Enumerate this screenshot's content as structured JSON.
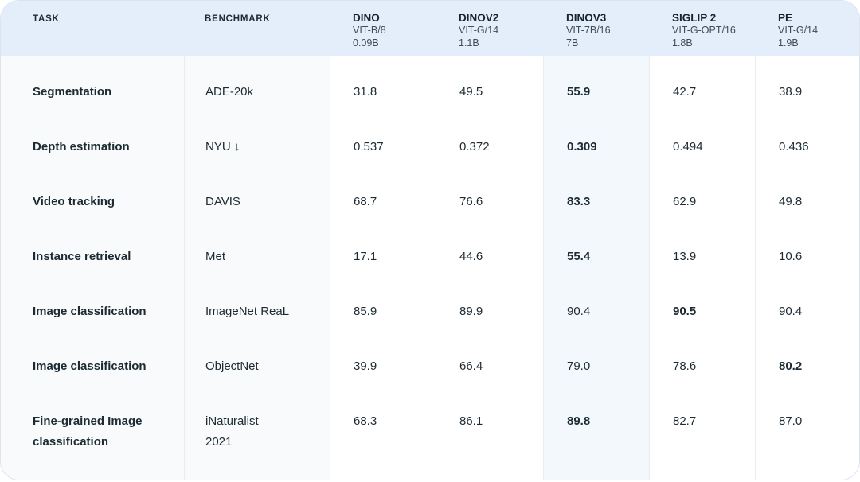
{
  "header": {
    "task_label": "TASK",
    "benchmark_label": "BENCHMARK",
    "models": [
      {
        "name": "DINO",
        "arch": "VIT-B/8",
        "params": "0.09B",
        "highlighted": false
      },
      {
        "name": "DINOV2",
        "arch": "VIT-G/14",
        "params": "1.1B",
        "highlighted": false
      },
      {
        "name": "DINOV3",
        "arch": "VIT-7B/16",
        "params": "7B",
        "highlighted": true
      },
      {
        "name": "SIGLIP 2",
        "arch": "VIT-G-OPT/16",
        "params": "1.8B",
        "highlighted": false
      },
      {
        "name": "PE",
        "arch": "VIT-G/14",
        "params": "1.9B",
        "highlighted": false
      }
    ]
  },
  "rows": [
    {
      "task": "Segmentation",
      "benchmark": "ADE-20k",
      "values": [
        "31.8",
        "49.5",
        "55.9",
        "42.7",
        "38.9"
      ],
      "best_model": "DINOV3"
    },
    {
      "task": "Depth estimation",
      "benchmark": "NYU ↓",
      "values": [
        "0.537",
        "0.372",
        "0.309",
        "0.494",
        "0.436"
      ],
      "best_model": "DINOV3"
    },
    {
      "task": "Video tracking",
      "benchmark": "DAVIS",
      "values": [
        "68.7",
        "76.6",
        "83.3",
        "62.9",
        "49.8"
      ],
      "best_model": "DINOV3"
    },
    {
      "task": "Instance retrieval",
      "benchmark": "Met",
      "values": [
        "17.1",
        "44.6",
        "55.4",
        "13.9",
        "10.6"
      ],
      "best_model": "DINOV3"
    },
    {
      "task": "Image classification",
      "benchmark": "ImageNet ReaL",
      "values": [
        "85.9",
        "89.9",
        "90.4",
        "90.5",
        "90.4"
      ],
      "best_model": "SIGLIP 2"
    },
    {
      "task": "Image classification",
      "benchmark": "ObjectNet",
      "values": [
        "39.9",
        "66.4",
        "79.0",
        "78.6",
        "80.2"
      ],
      "best_model": "PE"
    },
    {
      "task": "Fine-grained Image classification",
      "benchmark": "iNaturalist\n2021",
      "values": [
        "68.3",
        "86.1",
        "89.8",
        "82.7",
        "87.0"
      ],
      "best_model": "DINOV3"
    }
  ],
  "colors": {
    "header_background": "#e4eefb",
    "highlight_column_background": "#f3f8fd",
    "label_column_background": "#f9fafb",
    "text_primary": "#1c2b33",
    "text_secondary": "#3e4d57",
    "divider": "#e9ecf0"
  }
}
